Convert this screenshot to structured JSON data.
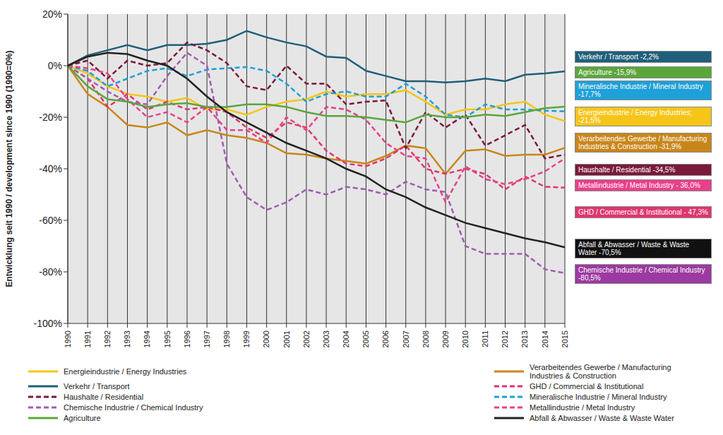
{
  "chart_data": {
    "type": "line",
    "y_label": "Entwicklung seit 1990 / development since 1990 (1990=0%)",
    "categories": [
      "1990",
      "1991",
      "1992",
      "1993",
      "1994",
      "1995",
      "1996",
      "1997",
      "1998",
      "1999",
      "2000",
      "2001",
      "2002",
      "2003",
      "2004",
      "2005",
      "2006",
      "2007",
      "2008",
      "2009",
      "2010",
      "2011",
      "2012",
      "2013",
      "2014",
      "2015"
    ],
    "ylim": [
      -100,
      20
    ],
    "yticks": [
      {
        "value": -100,
        "label": "-100%"
      },
      {
        "value": -80,
        "label": "-80%"
      },
      {
        "value": -60,
        "label": "-60%"
      },
      {
        "value": -40,
        "label": "-40%"
      },
      {
        "value": -20,
        "label": "-20%"
      },
      {
        "value": 0,
        "label": "0%"
      },
      {
        "value": 20,
        "label": "20%"
      }
    ],
    "grid": true,
    "series": [
      {
        "name": "Energieindustrie / Energy Industries",
        "color": "#f5c518",
        "line_style": "solid",
        "values": [
          0,
          -3,
          -8,
          -11,
          -12,
          -14,
          -12.5,
          -17,
          -17,
          -19,
          -16,
          -14,
          -13,
          -10,
          -12,
          -11,
          -11,
          -9.5,
          -14,
          -19,
          -17,
          -17,
          -15,
          -14,
          -19,
          -21.5
        ]
      },
      {
        "name": "Verarbeitendes Gewerbe / Manufacturing Industries & Construction",
        "color": "#c8861a",
        "line_style": "solid",
        "values": [
          0,
          -11,
          -16,
          -23,
          -24,
          -22,
          -27,
          -25,
          -27,
          -28,
          -30,
          -34,
          -34.5,
          -36,
          -37,
          -38,
          -35,
          -31,
          -32,
          -42,
          -33,
          -32.5,
          -35,
          -34.5,
          -34.5,
          -31.9
        ]
      },
      {
        "name": "Verkehr / Transport",
        "color": "#1f5f7a",
        "line_style": "solid",
        "values": [
          0,
          4,
          6,
          8,
          6,
          8,
          8,
          8.5,
          10,
          13.5,
          11,
          9,
          7.5,
          3.5,
          3,
          -2,
          -4,
          -6,
          -6,
          -6.5,
          -6,
          -5,
          -6,
          -3.5,
          -3,
          -2.2
        ]
      },
      {
        "name": "GHD / Commercial & Institutional",
        "color": "#e0356e",
        "line_style": "dashed",
        "values": [
          0,
          -5,
          -16,
          -11,
          -17,
          -14,
          -17,
          -16,
          -18,
          -24,
          -28,
          -22,
          -24,
          -33,
          -38,
          -39,
          -36,
          -31,
          -40,
          -42,
          -40,
          -42,
          -48,
          -43,
          -47,
          -47.3
        ]
      },
      {
        "name": "Haushalte / Residential",
        "color": "#7a1a3a",
        "line_style": "dashed",
        "values": [
          0,
          2,
          -5,
          2,
          0,
          1,
          9,
          6,
          1,
          -8,
          -9.5,
          0,
          -7,
          -7,
          -15,
          -14,
          -13.5,
          -32,
          -18,
          -24,
          -19,
          -31,
          -27,
          -23,
          -36,
          -34.5
        ]
      },
      {
        "name": "Mineralische Industrie / Mineral Industry",
        "color": "#1ea0d8",
        "line_style": "dashed",
        "values": [
          0,
          -2,
          -8,
          -5,
          -2,
          -1,
          -4,
          -1.5,
          -1,
          -0.5,
          -2,
          -7,
          -14,
          -11,
          -10,
          -12,
          -12,
          -7,
          -12,
          -19,
          -20,
          -15,
          -17,
          -17,
          -17.5,
          -17.7
        ]
      },
      {
        "name": "Chemische Industrie / Chemical Industry",
        "color": "#a05cb0",
        "line_style": "dashed",
        "values": [
          0,
          -5,
          -10,
          -14,
          -15,
          -4,
          5,
          0,
          -38,
          -51,
          -56,
          -53,
          -48,
          -50,
          -47,
          -48,
          -50,
          -45,
          -48,
          -49,
          -70,
          -73,
          -73,
          -73,
          -79,
          -80.5
        ]
      },
      {
        "name": "Metallindustrie / Metal Industry",
        "color": "#e8408a",
        "line_style": "dashed",
        "values": [
          0,
          -1,
          -3,
          -13,
          -20,
          -18,
          -22,
          -16,
          -25,
          -25,
          -30,
          -20,
          -25,
          -16,
          -17,
          -21,
          -30,
          -35,
          -36,
          -53,
          -39,
          -44,
          -46,
          -44,
          -41,
          -36
        ]
      },
      {
        "name": "Agriculture",
        "color": "#5aa63c",
        "line_style": "solid",
        "values": [
          0,
          -8,
          -13,
          -14,
          -16,
          -15,
          -14.5,
          -16,
          -16,
          -15,
          -15,
          -16,
          -18,
          -19.5,
          -19.5,
          -20,
          -21,
          -22,
          -19,
          -20,
          -20,
          -19,
          -19.5,
          -18,
          -16.5,
          -15.9
        ]
      },
      {
        "name": "Abfall & Abwasser / Waste & Waste Water",
        "color": "#222222",
        "line_style": "solid",
        "values": [
          0,
          3.5,
          5,
          4.5,
          2,
          0,
          -5,
          -12,
          -18,
          -22,
          -26,
          -30,
          -33,
          -36,
          -40,
          -43,
          -48,
          -51,
          -55,
          -58,
          -61,
          -63,
          -65,
          -67,
          -68.5,
          -70.5
        ]
      }
    ],
    "annotations": [
      {
        "text": "Verkehr / Transport -2,2%",
        "color": "#1f5f7a"
      },
      {
        "text": "Agriculture -15,9%",
        "color": "#5aa63c"
      },
      {
        "text": "Mineralische Industrie / Mineral Industry -17,7%",
        "color": "#1ea0d8"
      },
      {
        "text": "Energieindustrie / Energy Industries; -21,5%",
        "color": "#f5c518"
      },
      {
        "text": "Verarbeitendes Gewerbe / Manufacturing Industries & Construction -31,9%",
        "color": "#c8861a"
      },
      {
        "text": "Haushalte / Residential -34,5%",
        "color": "#7a1a3a"
      },
      {
        "text": "Metallindustrie / Metal Industry - 36,0%",
        "color": "#e8408a"
      },
      {
        "text": "GHD / Commercial & Institutional - 47,3%",
        "color": "#e0356e"
      },
      {
        "text": "Abfall & Abwasser / Waste & Waste Water -70,5%",
        "color": "#111111"
      },
      {
        "text": "Chemische Industrie / Chemical Industry -80,5%",
        "color": "#9b3aa0"
      }
    ]
  }
}
